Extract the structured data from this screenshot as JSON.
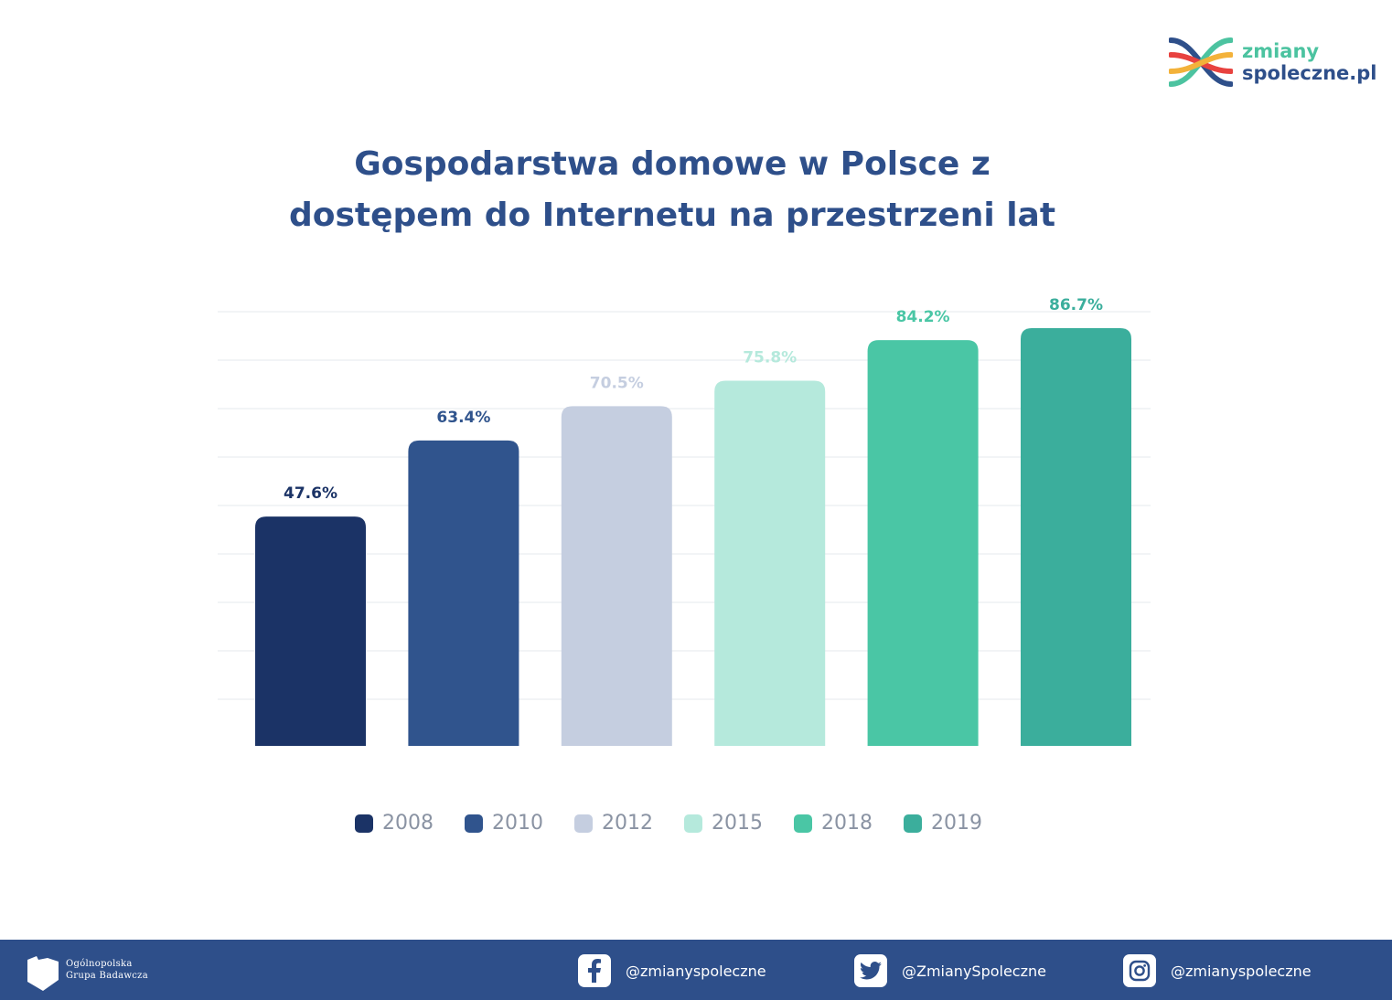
{
  "logo": {
    "line1": "zmiany",
    "line2": "spoleczne.pl",
    "colors": [
      "#e8423f",
      "#f3b23a",
      "#2e4f8a",
      "#4cc3a0"
    ]
  },
  "header": {
    "title_line1": "Gospodarstwa domowe w Polsce z",
    "title_line2": "dostępem do Internetu na przestrzeni lat"
  },
  "chart_data": {
    "type": "bar",
    "categories": [
      "2008",
      "2010",
      "2012",
      "2015",
      "2018",
      "2019"
    ],
    "values": [
      47.6,
      63.4,
      70.5,
      75.8,
      84.2,
      86.7
    ],
    "value_labels": [
      "47.6%",
      "63.4%",
      "70.5%",
      "75.8%",
      "84.2%",
      "86.7%"
    ],
    "colors": [
      "#1b3366",
      "#30548d",
      "#c5cee0",
      "#b5e9dc",
      "#4ac6a5",
      "#3bae9c"
    ],
    "label_colors": [
      "#1b3366",
      "#30548d",
      "#c5cee0",
      "#b5e9dc",
      "#4ac6a5",
      "#3bae9c"
    ],
    "ylim": [
      0,
      90
    ],
    "grid": true,
    "legend": "bottom"
  },
  "footer": {
    "org_line1": "Ogólnopolska",
    "org_line2": "Grupa Badawcza",
    "facebook": "@zmianyspoleczne",
    "twitter": "@ZmianySpoleczne",
    "instagram": "@zmianyspoleczne"
  }
}
